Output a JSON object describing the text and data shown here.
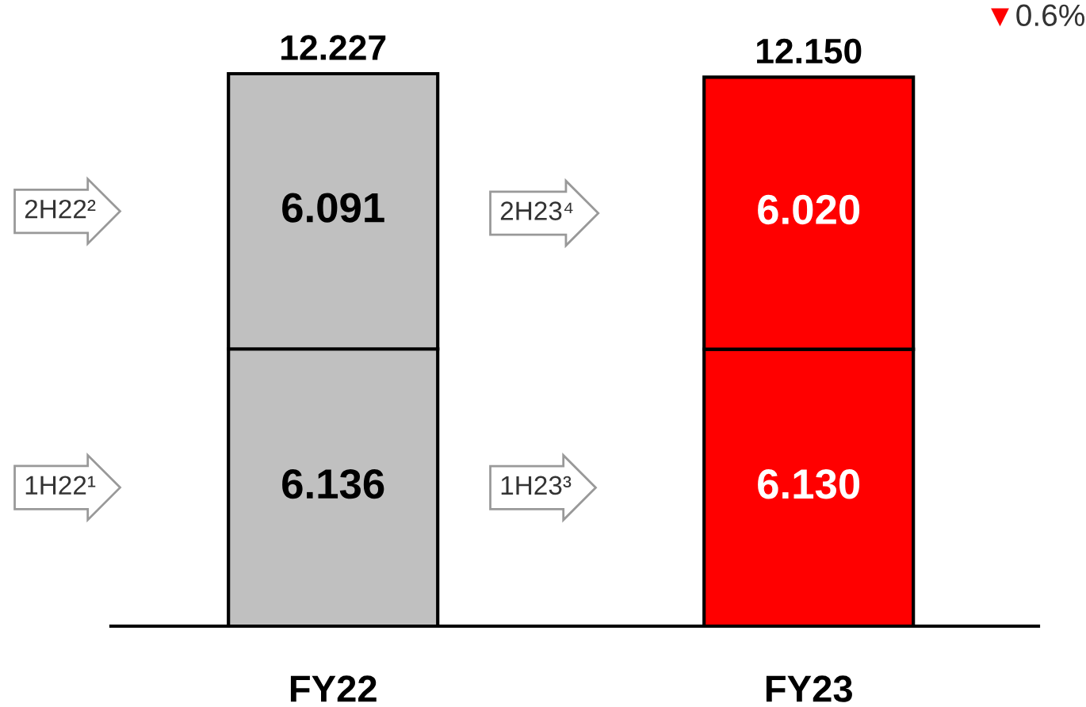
{
  "chart_data": {
    "type": "bar",
    "stacked": true,
    "categories": [
      "FY22",
      "FY23"
    ],
    "series": [
      {
        "colors": [
          "#c0c0c0",
          "#ff0000"
        ],
        "values": [
          6.136,
          6.13
        ],
        "value_labels": [
          "6.136",
          "6.130"
        ]
      },
      {
        "colors": [
          "#c0c0c0",
          "#ff0000"
        ],
        "values": [
          6.091,
          6.02
        ],
        "value_labels": [
          "6.091",
          "6.020"
        ]
      }
    ],
    "totals": [
      "12.227",
      "12.150"
    ],
    "annotations": [
      "1H22¹",
      "2H22²",
      "1H23³",
      "2H23⁴",
      "▼0.6%"
    ],
    "grid": false,
    "legend": false
  }
}
